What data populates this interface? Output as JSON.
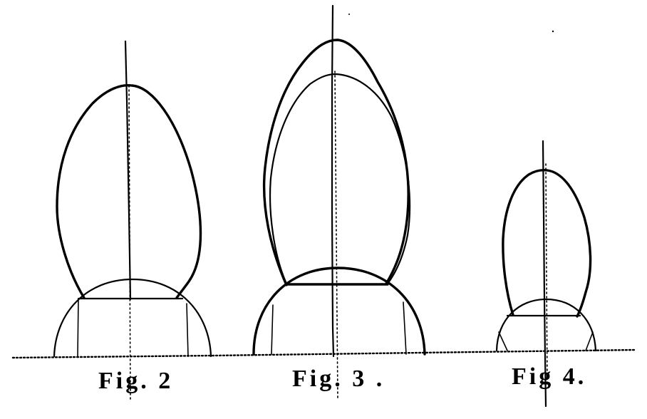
{
  "figures": [
    {
      "id": "fig-2",
      "caption": "Fig. 2"
    },
    {
      "id": "fig-3",
      "caption": "Fig. 3 ."
    },
    {
      "id": "fig-4",
      "caption": "Fig 4."
    }
  ],
  "colors": {
    "ink": "#000000",
    "paper": "#ffffff"
  }
}
